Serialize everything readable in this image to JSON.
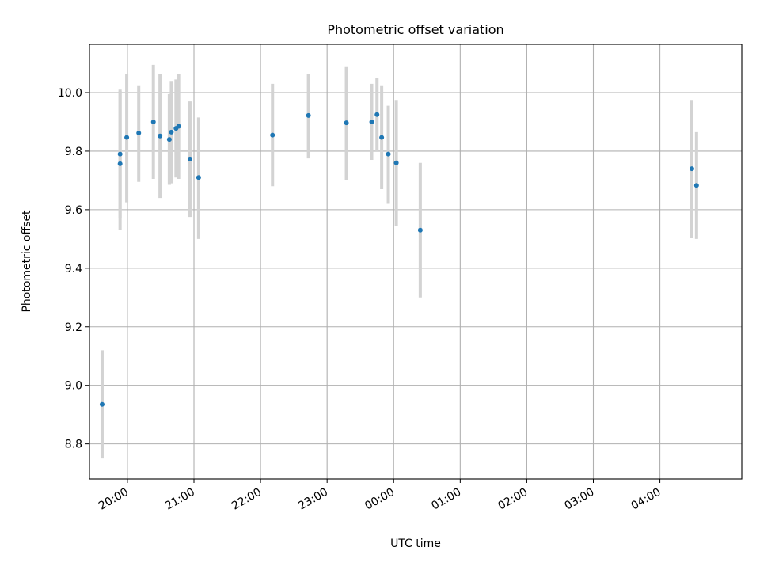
{
  "chart_data": {
    "type": "scatter",
    "title": "Photometric offset variation",
    "xlabel": "UTC time",
    "ylabel": "Photometric offset",
    "x_unit": "hours (UTC)",
    "xlim": [
      19.43,
      29.23
    ],
    "ylim": [
      8.68,
      10.165
    ],
    "x_ticks": [
      {
        "value": 20,
        "label": "20:00"
      },
      {
        "value": 21,
        "label": "21:00"
      },
      {
        "value": 22,
        "label": "22:00"
      },
      {
        "value": 23,
        "label": "23:00"
      },
      {
        "value": 24,
        "label": "00:00"
      },
      {
        "value": 25,
        "label": "01:00"
      },
      {
        "value": 26,
        "label": "02:00"
      },
      {
        "value": 27,
        "label": "03:00"
      },
      {
        "value": 28,
        "label": "04:00"
      }
    ],
    "y_ticks": [
      {
        "value": 8.8,
        "label": "8.8"
      },
      {
        "value": 9.0,
        "label": "9.0"
      },
      {
        "value": 9.2,
        "label": "9.2"
      },
      {
        "value": 9.4,
        "label": "9.4"
      },
      {
        "value": 9.6,
        "label": "9.6"
      },
      {
        "value": 9.8,
        "label": "9.8"
      },
      {
        "value": 10.0,
        "label": "10.0"
      }
    ],
    "grid": true,
    "marker_color": "#1f77b4",
    "errorbar_color": "#d3d3d3",
    "points": [
      {
        "x": 19.62,
        "y": 8.935,
        "lo": 8.75,
        "hi": 9.12
      },
      {
        "x": 19.89,
        "y": 9.757,
        "lo": 9.53,
        "hi": 10.01
      },
      {
        "x": 19.89,
        "y": 9.79,
        "lo": 9.57,
        "hi": 10.005
      },
      {
        "x": 19.99,
        "y": 9.847,
        "lo": 9.625,
        "hi": 10.065
      },
      {
        "x": 20.17,
        "y": 9.862,
        "lo": 9.695,
        "hi": 10.025
      },
      {
        "x": 20.39,
        "y": 9.9,
        "lo": 9.705,
        "hi": 10.095
      },
      {
        "x": 20.49,
        "y": 9.852,
        "lo": 9.64,
        "hi": 10.065
      },
      {
        "x": 20.63,
        "y": 9.84,
        "lo": 9.685,
        "hi": 9.995
      },
      {
        "x": 20.66,
        "y": 9.865,
        "lo": 9.69,
        "hi": 10.04
      },
      {
        "x": 20.73,
        "y": 9.878,
        "lo": 9.71,
        "hi": 10.045
      },
      {
        "x": 20.77,
        "y": 9.885,
        "lo": 9.705,
        "hi": 10.065
      },
      {
        "x": 20.94,
        "y": 9.773,
        "lo": 9.575,
        "hi": 9.97
      },
      {
        "x": 21.07,
        "y": 9.71,
        "lo": 9.5,
        "hi": 9.915
      },
      {
        "x": 22.18,
        "y": 9.855,
        "lo": 9.68,
        "hi": 10.03
      },
      {
        "x": 22.72,
        "y": 9.922,
        "lo": 9.775,
        "hi": 10.065
      },
      {
        "x": 23.29,
        "y": 9.897,
        "lo": 9.7,
        "hi": 10.09
      },
      {
        "x": 23.67,
        "y": 9.9,
        "lo": 9.77,
        "hi": 10.03
      },
      {
        "x": 23.75,
        "y": 9.925,
        "lo": 9.8,
        "hi": 10.05
      },
      {
        "x": 23.82,
        "y": 9.847,
        "lo": 9.67,
        "hi": 10.025
      },
      {
        "x": 23.92,
        "y": 9.79,
        "lo": 9.62,
        "hi": 9.955
      },
      {
        "x": 24.04,
        "y": 9.76,
        "lo": 9.545,
        "hi": 9.975
      },
      {
        "x": 24.4,
        "y": 9.53,
        "lo": 9.3,
        "hi": 9.76
      },
      {
        "x": 28.48,
        "y": 9.74,
        "lo": 9.505,
        "hi": 9.975
      },
      {
        "x": 28.55,
        "y": 9.683,
        "lo": 9.5,
        "hi": 9.865
      }
    ]
  }
}
